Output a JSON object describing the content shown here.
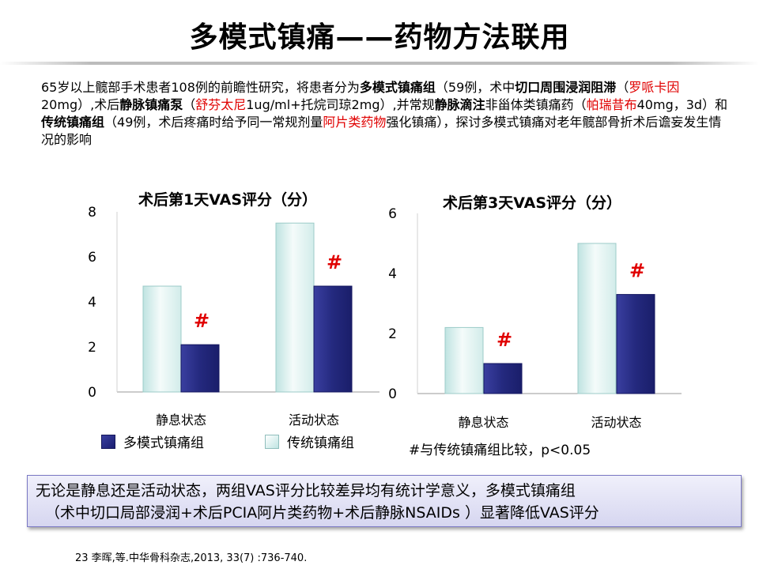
{
  "page": {
    "title": "多模式镇痛——药物方法联用",
    "intro": [
      {
        "t": "65岁以上髋部手术患者108例的前瞻性研究，将患者分为",
        "s": "n"
      },
      {
        "t": "多模式镇痛组",
        "s": "b"
      },
      {
        "t": "（59例，术中",
        "s": "n"
      },
      {
        "t": "切口周围浸润阻滞",
        "s": "b"
      },
      {
        "t": "（",
        "s": "n"
      },
      {
        "t": "罗哌卡因",
        "s": "r"
      },
      {
        "t": "20mg）,术后",
        "s": "n"
      },
      {
        "t": "静脉镇痛泵",
        "s": "b"
      },
      {
        "t": "（",
        "s": "n"
      },
      {
        "t": "舒芬太尼",
        "s": "r"
      },
      {
        "t": "1ug/ml+托烷司琼2mg）,并常规",
        "s": "n"
      },
      {
        "t": "静脉滴注",
        "s": "b"
      },
      {
        "t": "非甾体类镇痛药（",
        "s": "n"
      },
      {
        "t": "帕瑞昔布",
        "s": "r"
      },
      {
        "t": "40mg，3d）和",
        "s": "n"
      },
      {
        "t": "传统镇痛组",
        "s": "b"
      },
      {
        "t": "（49例，术后疼痛时给予同一常规剂量",
        "s": "n"
      },
      {
        "t": "阿片类药物",
        "s": "r"
      },
      {
        "t": "强化镇痛），探讨多模式镇痛对老年髋部骨折术后谵妄发生情况的影响",
        "s": "n"
      }
    ],
    "legend": {
      "series_a": "多模式镇痛组",
      "series_b": "传统镇痛组"
    },
    "note": "#与传统镇痛组比较，p<0.05",
    "conclusion": {
      "line1": "无论是静息还是活动状态，两组VAS评分比较差异均有统计学意义，多模式镇痛组",
      "line2": "（术中切口局部浸润+术后PCIA阿片类药物+术后静脉NSAIDs ）显著降低VAS评分"
    },
    "reference": "23 李晖,等.中华骨科杂志,2013, 33(7) :736-740."
  },
  "colors": {
    "series_a": "#24297e",
    "series_b": "#d2ecea",
    "marker": "#e00000"
  },
  "chart_data": [
    {
      "type": "bar",
      "title": "术后第1天VAS评分（分）",
      "categories": [
        "静息状态",
        "活动状态"
      ],
      "series": [
        {
          "name": "传统镇痛组",
          "values": [
            4.7,
            7.5
          ]
        },
        {
          "name": "多模式镇痛组",
          "values": [
            2.1,
            4.7
          ]
        }
      ],
      "markers": [
        "#",
        "#"
      ],
      "yticks": [
        0,
        2,
        4,
        6,
        8
      ],
      "ylim": [
        0,
        8
      ],
      "grid": false,
      "legend": "bottom"
    },
    {
      "type": "bar",
      "title": "术后第3天VAS评分（分）",
      "categories": [
        "静息状态",
        "活动状态"
      ],
      "series": [
        {
          "name": "传统镇痛组",
          "values": [
            2.2,
            5.0
          ]
        },
        {
          "name": "多模式镇痛组",
          "values": [
            1.0,
            3.3
          ]
        }
      ],
      "markers": [
        "#",
        "#"
      ],
      "yticks": [
        0,
        2,
        4,
        6
      ],
      "ylim": [
        0,
        6
      ],
      "grid": false,
      "legend": "bottom"
    }
  ]
}
